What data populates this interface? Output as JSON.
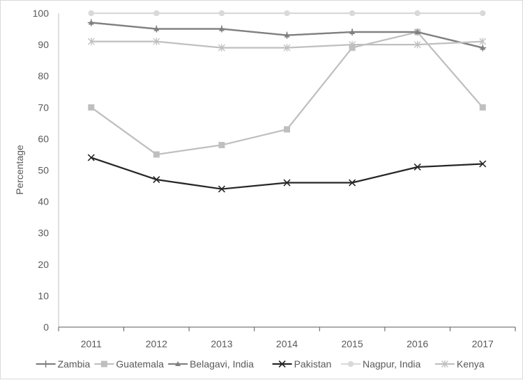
{
  "chart_data": {
    "type": "line",
    "x": [
      "2011",
      "2012",
      "2013",
      "2014",
      "2015",
      "2016",
      "2017"
    ],
    "ylabel": "Percentage",
    "ylim": [
      0,
      100
    ],
    "yticks": [
      0,
      10,
      20,
      30,
      40,
      50,
      60,
      70,
      80,
      90,
      100
    ],
    "grid": false,
    "legend_position": "bottom",
    "series": [
      {
        "name": "Zambia",
        "values": [
          97,
          95,
          95,
          93,
          94,
          94,
          89
        ],
        "color": "#7f7f7f",
        "marker": "plus"
      },
      {
        "name": "Guatemala",
        "values": [
          70,
          55,
          58,
          63,
          89,
          94,
          70
        ],
        "color": "#bfbfbf",
        "marker": "square"
      },
      {
        "name": "Belagavi, India",
        "values": [
          97,
          95,
          95,
          93,
          94,
          94,
          89
        ],
        "color": "#808080",
        "marker": "triangle"
      },
      {
        "name": "Pakistan",
        "values": [
          54,
          47,
          44,
          46,
          46,
          51,
          52
        ],
        "color": "#262626",
        "marker": "x"
      },
      {
        "name": "Nagpur, India",
        "values": [
          100,
          100,
          100,
          100,
          100,
          100,
          100
        ],
        "color": "#d9d9d9",
        "marker": "circle"
      },
      {
        "name": "Kenya",
        "values": [
          91,
          91,
          89,
          89,
          90,
          90,
          91
        ],
        "color": "#bfbfbf",
        "marker": "star"
      }
    ]
  }
}
